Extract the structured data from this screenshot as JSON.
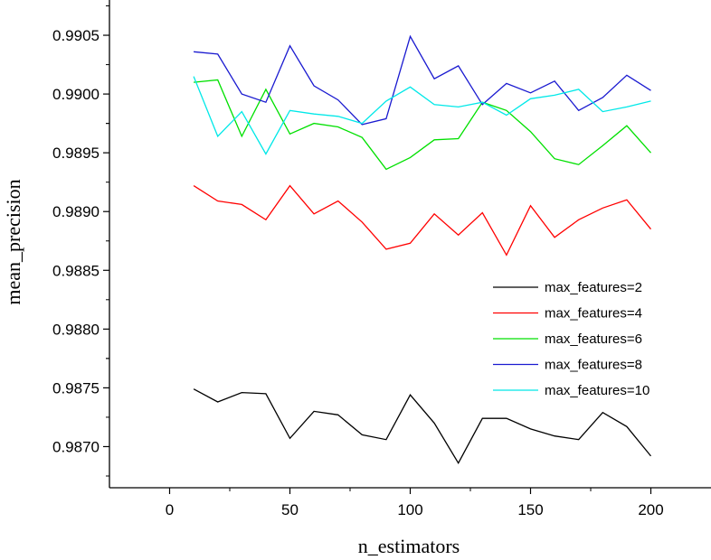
{
  "chart_data": {
    "type": "line",
    "title": "",
    "xlabel": "n_estimators",
    "ylabel": "mean_precision",
    "xlim": [
      -25,
      225
    ],
    "ylim": [
      0.98665,
      0.9908
    ],
    "xticks": [
      0,
      50,
      100,
      150,
      200
    ],
    "xtick_labels": [
      "0",
      "50",
      "100",
      "150",
      "200"
    ],
    "yticks": [
      0.987,
      0.9875,
      0.988,
      0.9885,
      0.989,
      0.9895,
      0.99,
      0.9905
    ],
    "ytick_labels": [
      "0.9870",
      "0.9875",
      "0.9880",
      "0.9885",
      "0.9890",
      "0.9895",
      "0.9900",
      "0.9905"
    ],
    "grid": false,
    "legend_position": "right",
    "x": [
      10,
      20,
      30,
      40,
      50,
      60,
      70,
      80,
      90,
      100,
      110,
      120,
      130,
      140,
      150,
      160,
      170,
      180,
      190,
      200
    ],
    "series": [
      {
        "name": "max_features=2",
        "color": "#000000",
        "values": [
          0.98749,
          0.98738,
          0.98746,
          0.98745,
          0.98707,
          0.9873,
          0.98727,
          0.9871,
          0.98706,
          0.98744,
          0.9872,
          0.98686,
          0.98724,
          0.98724,
          0.98715,
          0.98709,
          0.98706,
          0.98729,
          0.98717,
          0.98692
        ]
      },
      {
        "name": "max_features=4",
        "color": "#ff0000",
        "values": [
          0.98922,
          0.98909,
          0.98906,
          0.98893,
          0.98922,
          0.98898,
          0.98909,
          0.98891,
          0.98868,
          0.98873,
          0.98898,
          0.9888,
          0.98899,
          0.98863,
          0.98905,
          0.98878,
          0.98893,
          0.98903,
          0.9891,
          0.98885
        ]
      },
      {
        "name": "max_features=6",
        "color": "#00e000",
        "values": [
          0.9901,
          0.99012,
          0.98964,
          0.99004,
          0.98966,
          0.98975,
          0.98972,
          0.98963,
          0.98936,
          0.98946,
          0.98961,
          0.98962,
          0.98993,
          0.98986,
          0.98968,
          0.98945,
          0.9894,
          0.98956,
          0.98973,
          0.9895
        ]
      },
      {
        "name": "max_features=8",
        "color": "#1a1ad0",
        "values": [
          0.99036,
          0.99034,
          0.99,
          0.98993,
          0.99041,
          0.99007,
          0.98995,
          0.98974,
          0.98979,
          0.99049,
          0.99013,
          0.99024,
          0.98991,
          0.99009,
          0.99001,
          0.99011,
          0.98986,
          0.98997,
          0.99016,
          0.99003
        ]
      },
      {
        "name": "max_features=10",
        "color": "#00e8e8",
        "values": [
          0.99015,
          0.98964,
          0.98985,
          0.98949,
          0.98986,
          0.98983,
          0.98981,
          0.98975,
          0.98994,
          0.99006,
          0.98991,
          0.98989,
          0.98993,
          0.98982,
          0.98996,
          0.98999,
          0.99004,
          0.98985,
          0.98989,
          0.98994
        ]
      }
    ]
  }
}
